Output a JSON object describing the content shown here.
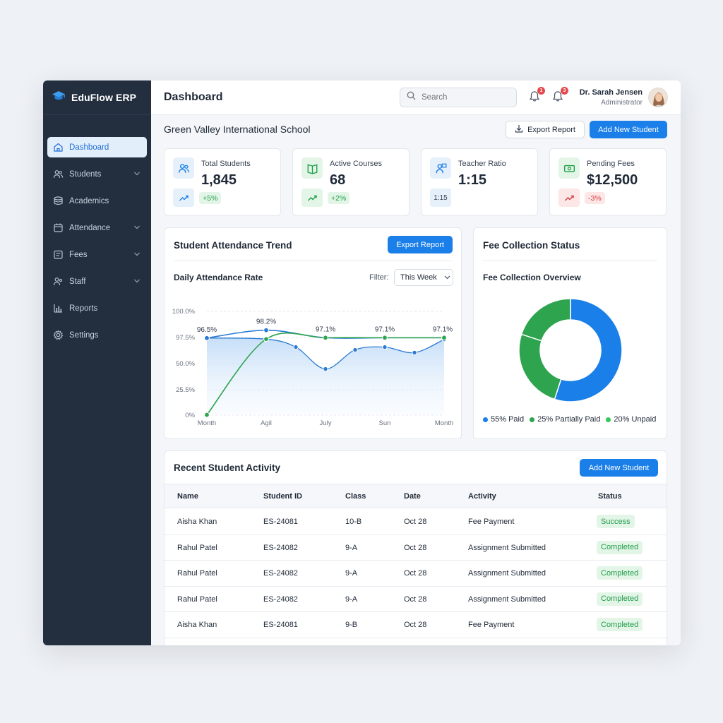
{
  "brand": {
    "name": "EduFlow ERP"
  },
  "sidebar": {
    "items": [
      {
        "label": "Dashboard",
        "icon": "home-icon",
        "active": true,
        "has_chevron": false
      },
      {
        "label": "Students",
        "icon": "users-icon",
        "active": false,
        "has_chevron": true
      },
      {
        "label": "Academics",
        "icon": "books-icon",
        "active": false,
        "has_chevron": false
      },
      {
        "label": "Attendance",
        "icon": "calendar-icon",
        "active": false,
        "has_chevron": true
      },
      {
        "label": "Fees",
        "icon": "invoice-icon",
        "active": false,
        "has_chevron": true
      },
      {
        "label": "Staff",
        "icon": "staff-icon",
        "active": false,
        "has_chevron": true
      },
      {
        "label": "Reports",
        "icon": "bar-chart-icon",
        "active": false,
        "has_chevron": false
      },
      {
        "label": "Settings",
        "icon": "gear-icon",
        "active": false,
        "has_chevron": false
      }
    ]
  },
  "header": {
    "title": "Dashboard",
    "search_placeholder": "Search",
    "notifications": [
      {
        "count": "1"
      },
      {
        "count": "3"
      }
    ],
    "user": {
      "name": "Dr. Sarah Jensen",
      "role": "Administrator"
    }
  },
  "school_name": "Green Valley International School",
  "actions": {
    "export_label": "Export Report",
    "add_label": "Add New Student"
  },
  "stats": [
    {
      "label": "Total Students",
      "value": "1,845",
      "icon": "users-icon",
      "box_text": "",
      "box_icon": "trend-up-icon",
      "chip": "+5%",
      "chip_color": "#1f9d49",
      "chip_bg": "#e3f5e7",
      "icon_bg": "#e6f0fb",
      "icon_color": "#1a7fe8"
    },
    {
      "label": "Active Courses",
      "value": "68",
      "icon": "book-icon",
      "box_text": "",
      "box_icon": "trend-up-icon",
      "chip": "+2%",
      "chip_color": "#1f9d49",
      "chip_bg": "#e3f5e7",
      "icon_bg": "#e3f5e7",
      "icon_color": "#1f9d49"
    },
    {
      "label": "Teacher Ratio",
      "value": "1:15",
      "icon": "teacher-icon",
      "box_text": "1:15",
      "box_icon": "",
      "chip": "",
      "chip_color": "",
      "chip_bg": "",
      "icon_bg": "#e6f0fb",
      "icon_color": "#1a7fe8"
    },
    {
      "label": "Pending Fees",
      "value": "$12,500",
      "icon": "cash-icon",
      "box_text": "",
      "box_icon": "trend-up-icon",
      "chip": "-3%",
      "chip_color": "#d63b3b",
      "chip_bg": "#fde6e6",
      "icon_bg": "#e3f5e7",
      "icon_color": "#1f9d49"
    }
  ],
  "attendance_panel": {
    "title": "Student Attendance Trend",
    "export_label": "Export Report",
    "subtitle": "Daily Attendance Rate",
    "filter_label": "Filter:",
    "filter_value": "This Week"
  },
  "chart_data": [
    {
      "type": "line",
      "title": "Daily Attendance Rate",
      "xlabel": "",
      "ylabel": "",
      "x_ticks": [
        "Month",
        "Agil",
        "July",
        "Sun",
        "Month"
      ],
      "y_ticks": [
        "100.0%",
        "97.5%",
        "50.0%",
        "25.5%",
        "0%"
      ],
      "data_labels": [
        "96.5%",
        "98.2%",
        "97.1%",
        "97.1%",
        "97.1%"
      ],
      "colors": {
        "blue": "#2b7bd3",
        "green": "#2ea44f"
      },
      "series": [
        {
          "color_key": "blue",
          "x": [
            0,
            1,
            2,
            3,
            4
          ],
          "values": [
            96.5,
            98.2,
            97.1,
            97.1,
            97.1
          ]
        },
        {
          "color_key": "green",
          "x": [
            0,
            1,
            2,
            3,
            4
          ],
          "values": [
            0.3,
            94.6,
            97.1,
            97.1,
            97.1
          ]
        },
        {
          "color_key": "blue",
          "area": true,
          "x": [
            0,
            1,
            1.5,
            2,
            2.5,
            3,
            3.5,
            4
          ],
          "values": [
            96.5,
            94.6,
            80.0,
            45.0,
            75.0,
            80.0,
            70.0,
            94.0
          ]
        }
      ],
      "grid": true
    },
    {
      "type": "pie",
      "donut": true,
      "title": "Fee Collection Overview",
      "slices": [
        {
          "label": "55% Paid",
          "value": 55,
          "color": "#1a7fe8"
        },
        {
          "label": "25% Partially Paid",
          "value": 25,
          "color": "#2ea44f"
        },
        {
          "label": "20% Unpaid",
          "value": 20,
          "color": "#2ea44f"
        }
      ]
    }
  ],
  "fee_panel": {
    "title": "Fee Collection Status",
    "subtitle": "Fee Collection Overview"
  },
  "activity": {
    "title": "Recent Student Activity",
    "add_label": "Add New Student",
    "columns": [
      "Name",
      "Student ID",
      "Class",
      "Date",
      "Activity",
      "Status"
    ],
    "rows": [
      [
        "Aisha Khan",
        "ES-24081",
        "10-B",
        "Oct 28",
        "Fee Payment",
        "Success"
      ],
      [
        "Rahul Patel",
        "ES-24082",
        "9-A",
        "Oct 28",
        "Assignment Submitted",
        "Completed"
      ],
      [
        "Rahul Patel",
        "ES-24082",
        "9-A",
        "Oct 28",
        "Assignment Submitted",
        "Completed"
      ],
      [
        "Rahul Patel",
        "ES-24082",
        "9-A",
        "Oct 28",
        "Assignment Submitted",
        "Completed"
      ],
      [
        "Aisha Khan",
        "ES-24081",
        "9-B",
        "Oct 28",
        "Fee Payment",
        "Completed"
      ]
    ]
  }
}
